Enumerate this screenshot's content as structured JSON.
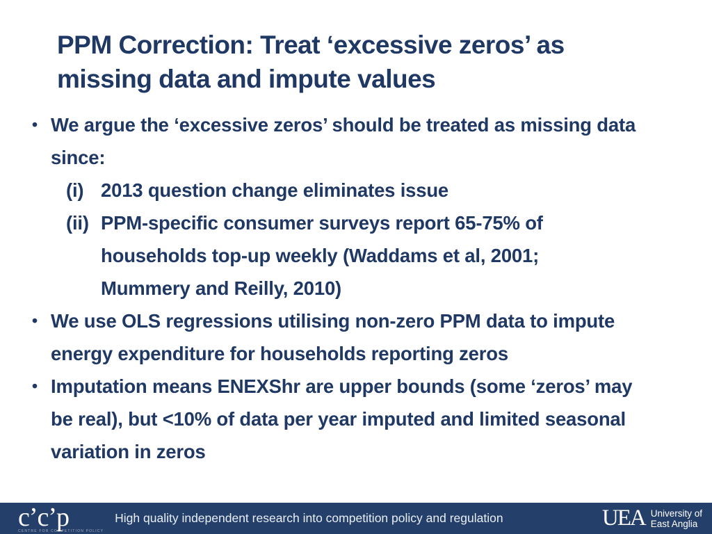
{
  "title": {
    "lines": [
      "PPM Correction: Treat ‘excessive zeros’ as",
      "missing data and impute values"
    ]
  },
  "content": {
    "bullet1": {
      "marker": "•",
      "lines": [
        "We argue the ‘excessive zeros’ should be treated as missing data",
        "since:"
      ]
    },
    "sub_i": {
      "marker": "(i)",
      "lines": [
        "2013 question change eliminates issue"
      ]
    },
    "sub_ii": {
      "marker": "(ii)",
      "lines": [
        "PPM-specific consumer surveys report 65-75% of",
        "households top-up weekly (Waddams et al, 2001;",
        "Mummery and Reilly, 2010)"
      ]
    },
    "bullet2": {
      "marker": "•",
      "lines": [
        "We use OLS regressions utilising non-zero PPM data to impute",
        "energy expenditure for households reporting zeros"
      ]
    },
    "bullet3": {
      "marker": "•",
      "lines": [
        "Imputation means ENEXShr are upper bounds (some ‘zeros’ may",
        "be real), but <10% of data per year imputed and limited seasonal",
        "variation in zeros"
      ]
    }
  },
  "footer": {
    "ccp_logo": "c’c’p",
    "ccp_subtext": "centre for competition policy",
    "tagline": "High quality independent research into competition policy and regulation",
    "uea_mark": "UEA",
    "uea_name_line1": "University of",
    "uea_name_line2": "East Anglia"
  },
  "colors": {
    "text_navy": "#1f3864",
    "footer_background": "#253f6b",
    "footer_text": "#e8eef6",
    "slide_background": "#ffffff"
  }
}
